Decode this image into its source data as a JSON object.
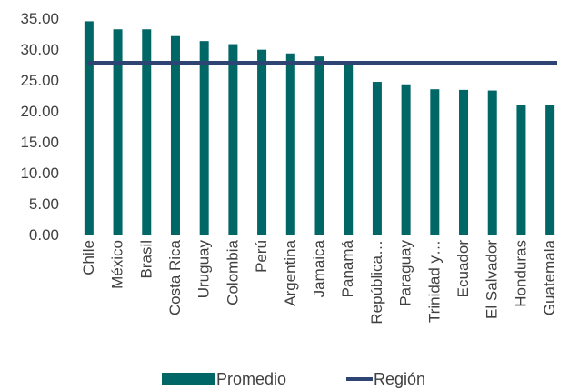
{
  "chart_data": {
    "type": "bar",
    "title": "",
    "xlabel": "",
    "ylabel": "",
    "ylim": [
      0,
      35
    ],
    "yticks": [
      "0.00",
      "5.00",
      "10.00",
      "15.00",
      "20.00",
      "25.00",
      "30.00",
      "35.00"
    ],
    "categories": [
      "Chile",
      "México",
      "Brasil",
      "Costa Rica",
      "Uruguay",
      "Colombia",
      "Perú",
      "Argentina",
      "Jamaica",
      "Panamá",
      "República…",
      "Paraguay",
      "Trinidad y…",
      "Ecuador",
      "El Salvador",
      "Honduras",
      "Guatemala"
    ],
    "series": [
      {
        "name": "Promedio",
        "type": "bar",
        "color": "#006666",
        "values": [
          34.5,
          33.2,
          33.2,
          32.1,
          31.3,
          30.8,
          29.9,
          29.3,
          28.8,
          27.8,
          24.7,
          24.3,
          23.5,
          23.4,
          23.3,
          21.0,
          21.0
        ]
      },
      {
        "name": "Región",
        "type": "line",
        "color": "#2E4473",
        "values": [
          27.8,
          27.8,
          27.8,
          27.8,
          27.8,
          27.8,
          27.8,
          27.8,
          27.8,
          27.8,
          27.8,
          27.8,
          27.8,
          27.8,
          27.8,
          27.8,
          27.8
        ]
      }
    ],
    "legend": "bottom",
    "grid": false
  }
}
